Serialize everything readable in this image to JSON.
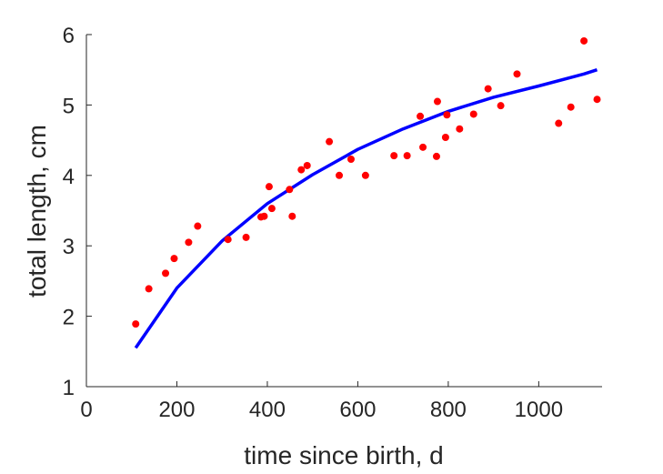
{
  "chart_data": {
    "type": "scatter",
    "xlabel": "time since birth, d",
    "ylabel": "total length, cm",
    "xlim": [
      0,
      1140
    ],
    "ylim": [
      1,
      6
    ],
    "xticks": [
      0,
      200,
      400,
      600,
      800,
      1000
    ],
    "yticks": [
      1,
      2,
      3,
      4,
      5,
      6
    ],
    "grid": false,
    "box": "open",
    "series": [
      {
        "kind": "points",
        "color": "#ff0000",
        "x": [
          109,
          138,
          175,
          194,
          226,
          246,
          313,
          353,
          386,
          393,
          404,
          410,
          449,
          455,
          475,
          488,
          537,
          559,
          585,
          617,
          680,
          709,
          738,
          744,
          774,
          776,
          794,
          797,
          825,
          856,
          888,
          916,
          952,
          1044,
          1071,
          1100,
          1129
        ],
        "y": [
          1.89,
          2.39,
          2.61,
          2.82,
          3.05,
          3.28,
          3.09,
          3.12,
          3.41,
          3.42,
          3.84,
          3.53,
          3.8,
          3.42,
          4.08,
          4.14,
          4.48,
          4.0,
          4.23,
          4.0,
          4.28,
          4.28,
          4.84,
          4.4,
          4.27,
          5.05,
          4.54,
          4.86,
          4.66,
          4.87,
          5.23,
          4.99,
          5.44,
          4.74,
          4.97,
          5.91,
          5.08
        ]
      },
      {
        "kind": "line",
        "color": "#0000ff",
        "x": [
          109,
          200,
          300,
          400,
          500,
          600,
          700,
          800,
          900,
          1000,
          1100,
          1129
        ],
        "y": [
          1.55,
          2.4,
          3.07,
          3.6,
          4.01,
          4.37,
          4.66,
          4.91,
          5.11,
          5.27,
          5.44,
          5.5
        ]
      }
    ]
  }
}
